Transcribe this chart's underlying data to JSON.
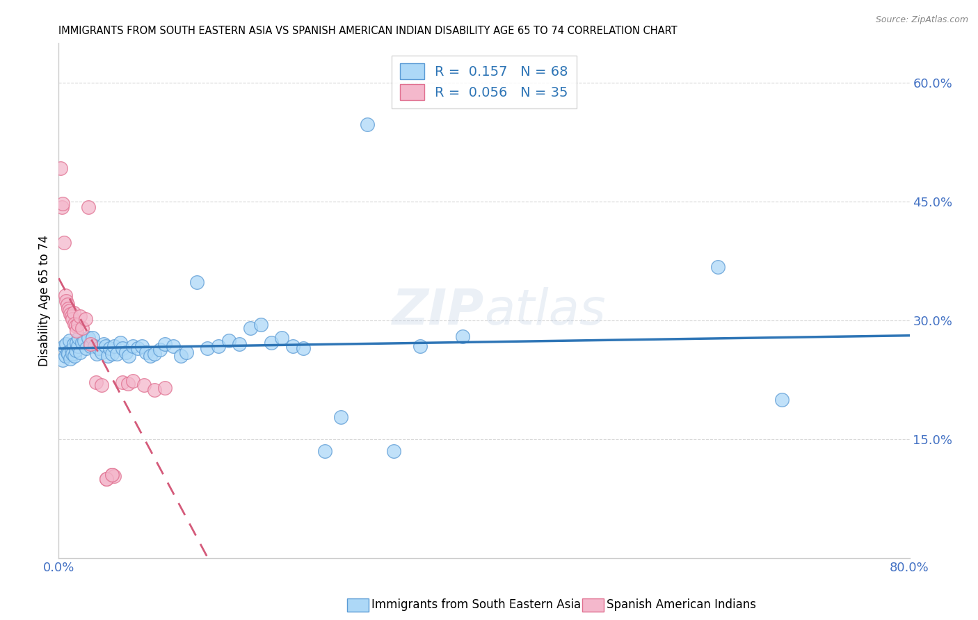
{
  "title": "IMMIGRANTS FROM SOUTH EASTERN ASIA VS SPANISH AMERICAN INDIAN DISABILITY AGE 65 TO 74 CORRELATION CHART",
  "source": "Source: ZipAtlas.com",
  "ylabel": "Disability Age 65 to 74",
  "xlim": [
    0.0,
    0.8
  ],
  "ylim": [
    0.0,
    0.65
  ],
  "ytick_positions": [
    0.15,
    0.3,
    0.45,
    0.6
  ],
  "ytick_labels": [
    "15.0%",
    "30.0%",
    "45.0%",
    "60.0%"
  ],
  "legend_label1": "Immigrants from South Eastern Asia",
  "legend_label2": "Spanish American Indians",
  "r1": 0.157,
  "n1": 68,
  "r2": 0.056,
  "n2": 35,
  "color_blue": "#add8f7",
  "color_blue_edge": "#5b9bd5",
  "color_blue_line": "#2e75b6",
  "color_pink": "#f4b8cc",
  "color_pink_edge": "#e07090",
  "color_pink_line": "#d45a7a",
  "color_tick": "#4472c4",
  "background": "#ffffff",
  "grid_color": "#cccccc",
  "blue_points": [
    [
      0.004,
      0.25
    ],
    [
      0.005,
      0.268
    ],
    [
      0.006,
      0.255
    ],
    [
      0.007,
      0.27
    ],
    [
      0.008,
      0.26
    ],
    [
      0.009,
      0.258
    ],
    [
      0.01,
      0.275
    ],
    [
      0.011,
      0.252
    ],
    [
      0.012,
      0.263
    ],
    [
      0.013,
      0.258
    ],
    [
      0.014,
      0.27
    ],
    [
      0.015,
      0.255
    ],
    [
      0.016,
      0.262
    ],
    [
      0.017,
      0.272
    ],
    [
      0.018,
      0.268
    ],
    [
      0.019,
      0.278
    ],
    [
      0.02,
      0.26
    ],
    [
      0.022,
      0.272
    ],
    [
      0.024,
      0.275
    ],
    [
      0.026,
      0.265
    ],
    [
      0.028,
      0.278
    ],
    [
      0.03,
      0.268
    ],
    [
      0.032,
      0.278
    ],
    [
      0.034,
      0.268
    ],
    [
      0.036,
      0.258
    ],
    [
      0.038,
      0.265
    ],
    [
      0.04,
      0.26
    ],
    [
      0.042,
      0.27
    ],
    [
      0.044,
      0.268
    ],
    [
      0.046,
      0.255
    ],
    [
      0.048,
      0.265
    ],
    [
      0.05,
      0.258
    ],
    [
      0.052,
      0.268
    ],
    [
      0.055,
      0.258
    ],
    [
      0.058,
      0.272
    ],
    [
      0.06,
      0.265
    ],
    [
      0.063,
      0.26
    ],
    [
      0.066,
      0.255
    ],
    [
      0.07,
      0.268
    ],
    [
      0.074,
      0.265
    ],
    [
      0.078,
      0.268
    ],
    [
      0.082,
      0.26
    ],
    [
      0.086,
      0.255
    ],
    [
      0.09,
      0.258
    ],
    [
      0.095,
      0.263
    ],
    [
      0.1,
      0.27
    ],
    [
      0.108,
      0.268
    ],
    [
      0.115,
      0.255
    ],
    [
      0.12,
      0.26
    ],
    [
      0.13,
      0.348
    ],
    [
      0.14,
      0.265
    ],
    [
      0.15,
      0.268
    ],
    [
      0.16,
      0.275
    ],
    [
      0.17,
      0.27
    ],
    [
      0.18,
      0.29
    ],
    [
      0.19,
      0.295
    ],
    [
      0.2,
      0.272
    ],
    [
      0.21,
      0.278
    ],
    [
      0.22,
      0.268
    ],
    [
      0.23,
      0.265
    ],
    [
      0.25,
      0.135
    ],
    [
      0.265,
      0.178
    ],
    [
      0.29,
      0.548
    ],
    [
      0.315,
      0.135
    ],
    [
      0.34,
      0.268
    ],
    [
      0.38,
      0.28
    ],
    [
      0.62,
      0.368
    ],
    [
      0.68,
      0.2
    ]
  ],
  "pink_points": [
    [
      0.002,
      0.492
    ],
    [
      0.003,
      0.443
    ],
    [
      0.004,
      0.448
    ],
    [
      0.005,
      0.398
    ],
    [
      0.006,
      0.332
    ],
    [
      0.007,
      0.325
    ],
    [
      0.008,
      0.32
    ],
    [
      0.009,
      0.315
    ],
    [
      0.01,
      0.312
    ],
    [
      0.011,
      0.308
    ],
    [
      0.012,
      0.305
    ],
    [
      0.013,
      0.302
    ],
    [
      0.014,
      0.31
    ],
    [
      0.015,
      0.296
    ],
    [
      0.016,
      0.293
    ],
    [
      0.017,
      0.287
    ],
    [
      0.018,
      0.295
    ],
    [
      0.02,
      0.305
    ],
    [
      0.022,
      0.29
    ],
    [
      0.025,
      0.302
    ],
    [
      0.028,
      0.443
    ],
    [
      0.03,
      0.27
    ],
    [
      0.035,
      0.222
    ],
    [
      0.04,
      0.218
    ],
    [
      0.045,
      0.1
    ],
    [
      0.05,
      0.105
    ],
    [
      0.052,
      0.103
    ],
    [
      0.06,
      0.222
    ],
    [
      0.065,
      0.22
    ],
    [
      0.07,
      0.224
    ],
    [
      0.08,
      0.218
    ],
    [
      0.09,
      0.212
    ],
    [
      0.1,
      0.215
    ],
    [
      0.045,
      0.1
    ],
    [
      0.05,
      0.105
    ]
  ]
}
